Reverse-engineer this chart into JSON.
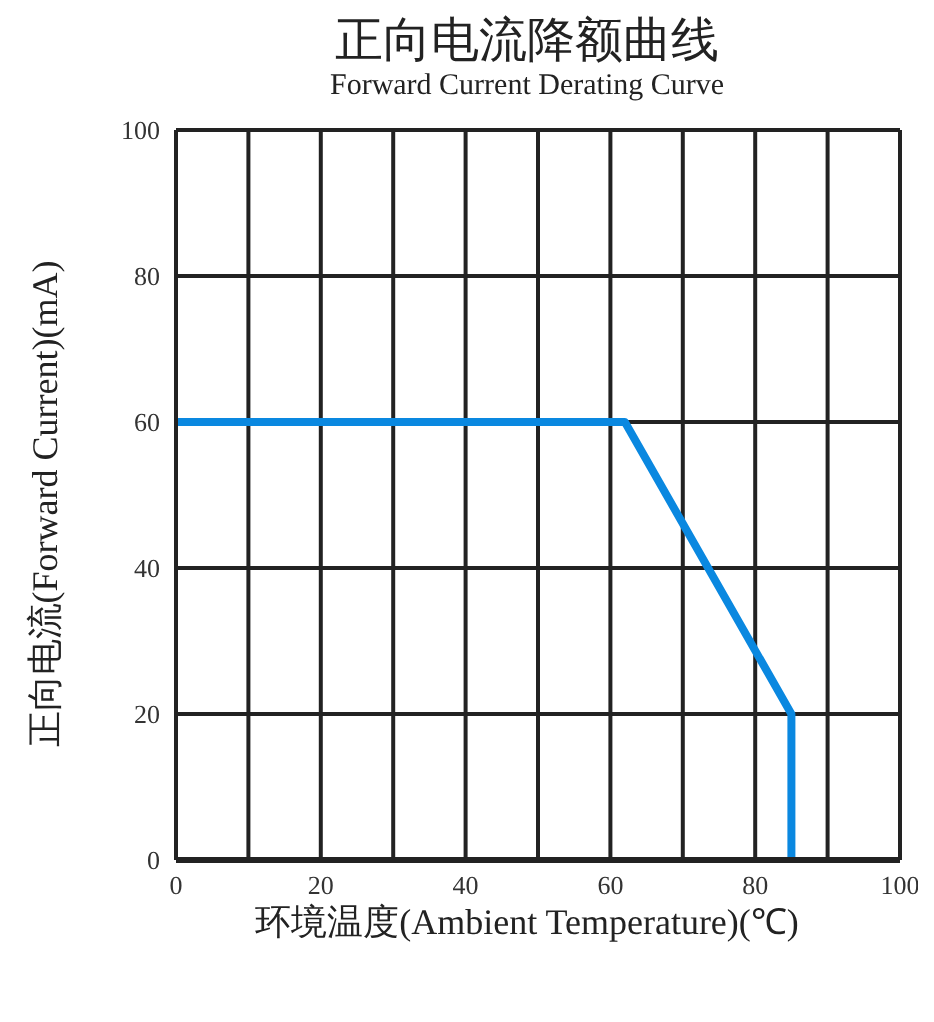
{
  "chart_data": {
    "type": "line",
    "title": "正向电流降额曲线",
    "subtitle": "Forward Current Derating Curve",
    "xlabel": "环境温度(Ambient Temperature)(℃)",
    "ylabel": "正向电流(Forward Current)(mA)",
    "x": [
      0,
      62,
      85,
      85
    ],
    "series": [
      {
        "color": "#0a88e0",
        "values": [
          60,
          60,
          20,
          0
        ]
      }
    ],
    "xlim": [
      0,
      100
    ],
    "ylim": [
      0,
      100
    ],
    "xticks": [
      0,
      {
        "value": 10,
        "label": null
      },
      20,
      {
        "value": 30,
        "label": null
      },
      40,
      {
        "value": 50,
        "label": null
      },
      60,
      {
        "value": 70,
        "label": null
      },
      80,
      {
        "value": 90,
        "label": null
      },
      100
    ],
    "yticks": [
      0,
      20,
      40,
      60,
      80,
      100
    ],
    "grid": true,
    "legend": false,
    "marker": "none",
    "line_style": "solid"
  }
}
